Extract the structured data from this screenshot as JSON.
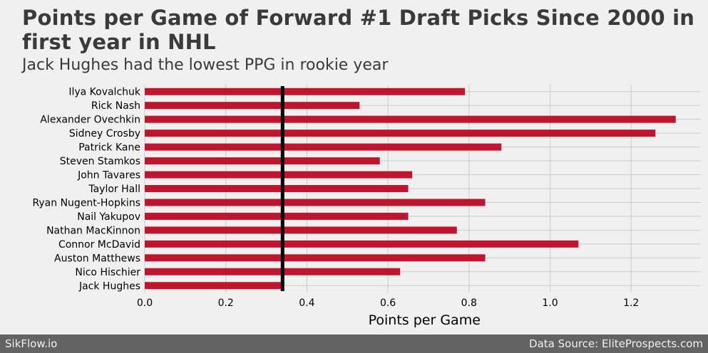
{
  "header": {
    "title": "Points per Game of Forward #1 Draft Picks Since 2000 in first year in NHL",
    "subtitle": "Jack Hughes had the lowest PPG in rookie year"
  },
  "footer": {
    "left": "SikFlow.io",
    "right": "Data Source: EliteProspects.com"
  },
  "colors": {
    "bar": "#c0152e",
    "reference_line": "#000000",
    "grid": "#cbcbcb",
    "background": "#f0f0f0",
    "footer": "#636363"
  },
  "chart_data": {
    "type": "bar",
    "orientation": "horizontal",
    "title": "Points per Game of Forward #1 Draft Picks Since 2000 in first year in NHL",
    "subtitle": "Jack Hughes had the lowest PPG in rookie year",
    "xlabel": "Points per Game",
    "ylabel": "",
    "xlim": [
      0,
      1.38
    ],
    "xticks": [
      "0.0",
      "0.2",
      "0.4",
      "0.6",
      "0.8",
      "1.0",
      "1.2"
    ],
    "grid": true,
    "reference_line": 0.34,
    "categories": [
      "Ilya Kovalchuk",
      "Rick Nash",
      "Alexander Ovechkin",
      "Sidney Crosby",
      "Patrick Kane",
      "Steven Stamkos",
      "John Tavares",
      "Taylor Hall",
      "Ryan Nugent-Hopkins",
      "Nail Yakupov",
      "Nathan MacKinnon",
      "Connor McDavid",
      "Auston Matthews",
      "Nico Hischier",
      "Jack Hughes"
    ],
    "values": [
      0.79,
      0.53,
      1.31,
      1.26,
      0.88,
      0.58,
      0.66,
      0.65,
      0.84,
      0.65,
      0.77,
      1.07,
      0.84,
      0.63,
      0.34
    ]
  }
}
